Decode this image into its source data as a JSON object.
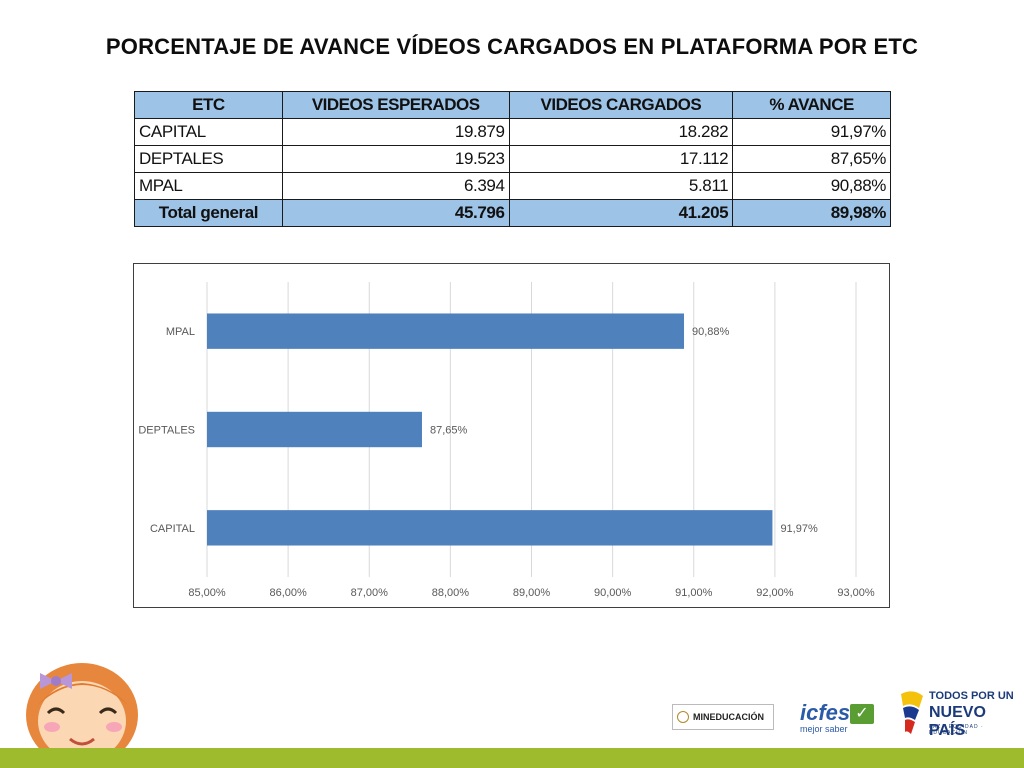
{
  "title": "PORCENTAJE DE AVANCE VÍDEOS CARGADOS EN PLATAFORMA POR ETC",
  "table": {
    "headers": [
      "ETC",
      "VIDEOS ESPERADOS",
      "VIDEOS CARGADOS",
      "% AVANCE"
    ],
    "rows": [
      [
        "CAPITAL",
        "19.879",
        "18.282",
        "91,97%"
      ],
      [
        "DEPTALES",
        "19.523",
        "17.112",
        "87,65%"
      ],
      [
        "MPAL",
        "6.394",
        "5.811",
        "90,88%"
      ]
    ],
    "total": [
      "Total general",
      "45.796",
      "41.205",
      "89,98%"
    ]
  },
  "chart_data": {
    "type": "bar",
    "orientation": "horizontal",
    "categories": [
      "MPAL",
      "DEPTALES",
      "CAPITAL"
    ],
    "values": [
      90.88,
      87.65,
      91.97
    ],
    "data_labels": [
      "90,88%",
      "87,65%",
      "91,97%"
    ],
    "xlim": [
      85,
      93
    ],
    "xticks": [
      85,
      86,
      87,
      88,
      89,
      90,
      91,
      92,
      93
    ],
    "xtick_labels": [
      "85,00%",
      "86,00%",
      "87,00%",
      "88,00%",
      "89,00%",
      "90,00%",
      "91,00%",
      "92,00%",
      "93,00%"
    ],
    "grid": true,
    "bar_color": "#4f81bd"
  },
  "logos": {
    "mineducacion": "MINEDUCACIÓN",
    "icfes": "icfes",
    "icfes_tagline": "mejor saber",
    "nuevo_pais_line1": "TODOS POR UN",
    "nuevo_pais_line2": "NUEVO PAÍS",
    "nuevo_pais_line3": "PAZ · EQUIDAD · EDUCACIÓN"
  },
  "colors": {
    "header_fill": "#9dc3e6",
    "footer_bar": "#9dbb2c"
  }
}
